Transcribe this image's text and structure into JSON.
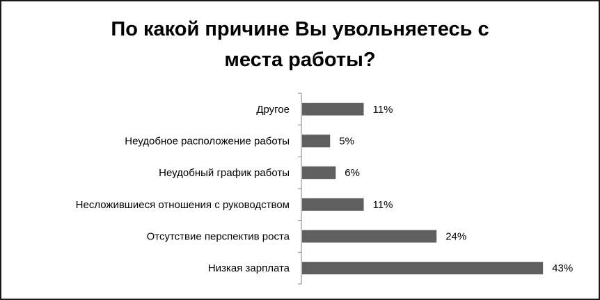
{
  "chart_data": {
    "type": "bar",
    "orientation": "horizontal",
    "title_lines": [
      "По какой причине Вы увольняетесь с",
      "места работы?"
    ],
    "categories": [
      "Другое",
      "Неудобное расположение работы",
      "Неудобный график работы",
      "Несложившиеся отношения с руководством",
      "Отсутствие перспектив роста",
      "Низкая зарплата"
    ],
    "values": [
      11,
      5,
      6,
      11,
      24,
      43
    ],
    "value_labels": [
      "11%",
      "5%",
      "6%",
      "11%",
      "24%",
      "43%"
    ],
    "unit": "%",
    "xlim": [
      0,
      45
    ],
    "bar_color": "#5f5f5f",
    "grid": false,
    "legend": "none"
  }
}
